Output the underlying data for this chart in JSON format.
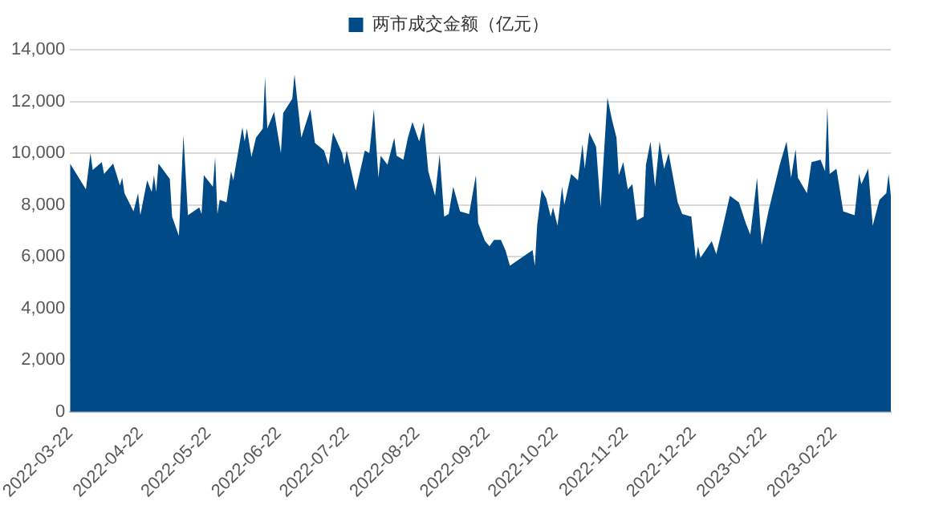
{
  "chart_data": {
    "type": "area",
    "legend": "top",
    "grid": "y",
    "marker": "none",
    "xlim": [
      "2022-03-22",
      "2023-03-19"
    ],
    "xticks": [
      "2022-03-22",
      "2022-04-22",
      "2022-05-22",
      "2022-06-22",
      "2022-07-22",
      "2022-08-22",
      "2022-09-22",
      "2022-10-22",
      "2022-11-22",
      "2022-12-22",
      "2023-01-22",
      "2023-02-22"
    ],
    "ylim": [
      0,
      14000
    ],
    "yticks": [
      0,
      {
        "value": 2000,
        "label": "2,000"
      },
      {
        "value": 4000,
        "label": "4,000"
      },
      {
        "value": 6000,
        "label": "6,000"
      },
      {
        "value": 8000,
        "label": "8,000"
      },
      {
        "value": 10000,
        "label": "10,000"
      },
      {
        "value": 12000,
        "label": "12,000"
      },
      {
        "value": 14000,
        "label": "14,000"
      }
    ],
    "x": [
      "2022-03-22",
      "2022-03-29",
      "2022-03-31",
      "2022-04-01",
      "2022-04-05",
      "2022-04-06",
      "2022-04-10",
      "2022-04-13",
      "2022-04-14",
      "2022-04-15",
      "2022-04-19",
      "2022-04-21",
      "2022-04-22",
      "2022-04-25",
      "2022-04-27",
      "2022-04-28",
      "2022-04-29",
      "2022-04-30",
      "2022-05-05",
      "2022-05-06",
      "2022-05-09",
      "2022-05-11",
      "2022-05-13",
      "2022-05-18",
      "2022-05-19",
      "2022-05-20",
      "2022-05-24",
      "2022-05-25",
      "2022-05-26",
      "2022-05-27",
      "2022-05-30",
      "2022-06-01",
      "2022-06-02",
      "2022-06-06",
      "2022-06-07",
      "2022-06-08",
      "2022-06-10",
      "2022-06-12",
      "2022-06-15",
      "2022-06-16",
      "2022-06-17",
      "2022-06-20",
      "2022-06-23",
      "2022-06-24",
      "2022-06-28",
      "2022-06-29",
      "2022-07-02",
      "2022-07-06",
      "2022-07-08",
      "2022-07-12",
      "2022-07-14",
      "2022-07-16",
      "2022-07-20",
      "2022-07-21",
      "2022-07-22",
      "2022-07-26",
      "2022-07-30",
      "2022-08-01",
      "2022-08-03",
      "2022-08-05",
      "2022-08-06",
      "2022-08-09",
      "2022-08-12",
      "2022-08-13",
      "2022-08-16",
      "2022-08-18",
      "2022-08-20",
      "2022-08-23",
      "2022-08-25",
      "2022-08-27",
      "2022-08-30",
      "2022-09-01",
      "2022-09-03",
      "2022-09-05",
      "2022-09-07",
      "2022-09-10",
      "2022-09-14",
      "2022-09-17",
      "2022-09-18",
      "2022-09-21",
      "2022-09-23",
      "2022-09-25",
      "2022-09-28",
      "2022-09-30",
      "2022-10-02",
      "2022-10-12",
      "2022-10-13",
      "2022-10-14",
      "2022-10-16",
      "2022-10-18",
      "2022-10-20",
      "2022-10-21",
      "2022-10-23",
      "2022-10-25",
      "2022-10-26",
      "2022-10-29",
      "2022-11-01",
      "2022-11-03",
      "2022-11-04",
      "2022-11-06",
      "2022-11-09",
      "2022-11-11",
      "2022-11-14",
      "2022-11-16",
      "2022-11-18",
      "2022-11-19",
      "2022-11-21",
      "2022-11-23",
      "2022-11-25",
      "2022-11-27",
      "2022-11-30",
      "2022-12-01",
      "2022-12-03",
      "2022-12-05",
      "2022-12-07",
      "2022-12-09",
      "2022-12-11",
      "2022-12-13",
      "2022-12-15",
      "2022-12-17",
      "2022-12-21",
      "2022-12-23",
      "2022-12-24",
      "2022-12-25",
      "2022-12-30",
      "2023-01-01",
      "2023-01-04",
      "2023-01-07",
      "2023-01-11",
      "2023-01-14",
      "2023-01-16",
      "2023-01-17",
      "2023-01-19",
      "2023-01-21",
      "2023-01-24",
      "2023-01-29",
      "2023-02-01",
      "2023-02-03",
      "2023-02-05",
      "2023-02-06",
      "2023-02-10",
      "2023-02-12",
      "2023-02-16",
      "2023-02-18",
      "2023-02-19",
      "2023-02-20",
      "2023-02-23",
      "2023-02-26",
      "2023-03-03",
      "2023-03-05",
      "2023-03-06",
      "2023-03-09",
      "2023-03-11",
      "2023-03-14",
      "2023-03-17",
      "2023-03-18",
      "2023-03-19"
    ],
    "series": [
      {
        "name": "两市成交金额（亿元）",
        "color": "#004a87",
        "values": [
          9600,
          8600,
          10000,
          9350,
          9650,
          9200,
          9600,
          8750,
          9050,
          8450,
          7750,
          8450,
          7600,
          8950,
          8500,
          9150,
          8500,
          9600,
          9000,
          7550,
          6800,
          10700,
          7600,
          7900,
          7650,
          9150,
          8700,
          9850,
          7650,
          8200,
          8100,
          9300,
          8950,
          11000,
          10450,
          10950,
          9850,
          10600,
          10950,
          12950,
          10950,
          11600,
          10000,
          11550,
          12100,
          13050,
          10600,
          11700,
          10400,
          10100,
          9550,
          10800,
          10000,
          9550,
          10100,
          8550,
          10100,
          10000,
          11700,
          9050,
          9900,
          9550,
          10600,
          9900,
          9750,
          10600,
          11200,
          10450,
          11200,
          9300,
          8350,
          9950,
          7550,
          7650,
          8700,
          7750,
          7650,
          9150,
          7300,
          6600,
          6400,
          6650,
          6650,
          6250,
          5650,
          6250,
          5650,
          7200,
          8600,
          8250,
          7550,
          7900,
          7200,
          8700,
          8000,
          9200,
          8950,
          10350,
          9400,
          10800,
          10250,
          7900,
          12150,
          11300,
          10600,
          9150,
          9650,
          8600,
          8800,
          7400,
          7550,
          9550,
          10450,
          8700,
          10450,
          9400,
          10000,
          9050,
          8100,
          7650,
          7550,
          5900,
          6400,
          5950,
          6600,
          6100,
          7200,
          8350,
          8100,
          7300,
          6850,
          7550,
          9050,
          6450,
          7750,
          9550,
          10450,
          9050,
          10150,
          9050,
          8450,
          9650,
          9750,
          9300,
          11800,
          9200,
          9400,
          7750,
          7600,
          9200,
          8800,
          9400,
          7200,
          8200,
          8450,
          9200,
          8350
        ]
      }
    ]
  }
}
